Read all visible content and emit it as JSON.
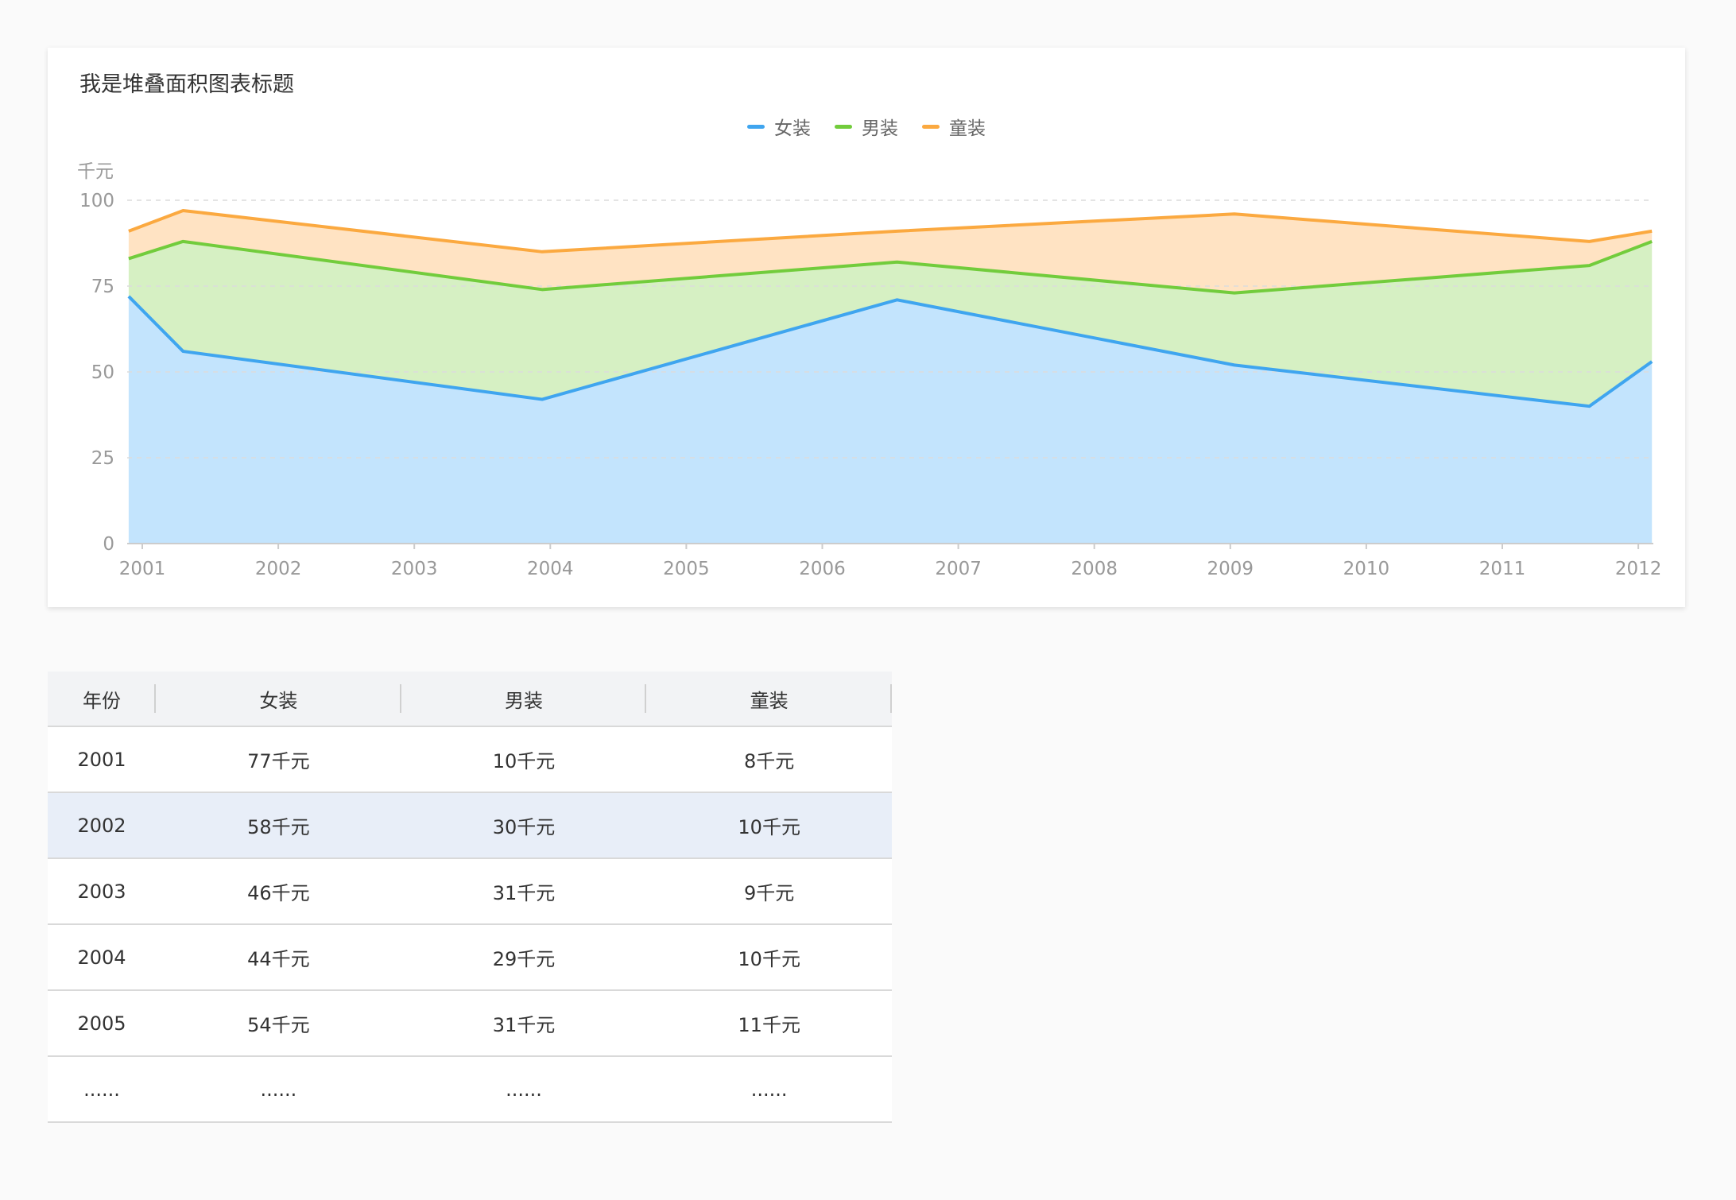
{
  "chart_data": {
    "type": "area",
    "stacked": true,
    "title": "我是堆叠面积图表标题",
    "ylabel": "千元",
    "xlabel": "",
    "ylim": [
      0,
      100
    ],
    "yticks": [
      0,
      25,
      50,
      75,
      100
    ],
    "categories": [
      "2001",
      "2002",
      "2003",
      "2004",
      "2005",
      "2006",
      "2007",
      "2008",
      "2009",
      "2010",
      "2011",
      "2012"
    ],
    "x": [
      2000.9,
      2001.3,
      2003.94,
      2006.55,
      2009.03,
      2011.64,
      2012.1
    ],
    "series": [
      {
        "name": "女装",
        "color": "#3fa5ef",
        "fill": "#c3e4fd",
        "values": [
          72,
          56,
          42,
          71,
          52,
          40,
          53
        ]
      },
      {
        "name": "男装",
        "color": "#72cc3c",
        "fill": "#d6f0c3",
        "values": [
          11,
          32,
          32,
          11,
          21,
          41,
          35
        ]
      },
      {
        "name": "童装",
        "color": "#fba940",
        "fill": "#ffe3c3",
        "values": [
          8,
          9,
          11,
          9,
          23,
          7,
          3
        ]
      }
    ],
    "grid": true,
    "legend_position": "top-center"
  },
  "table": {
    "headers": [
      "年份",
      "女装",
      "男装",
      "童装"
    ],
    "rows": [
      [
        "2001",
        "77千元",
        "10千元",
        "8千元"
      ],
      [
        "2002",
        "58千元",
        "30千元",
        "10千元"
      ],
      [
        "2003",
        "46千元",
        "31千元",
        "9千元"
      ],
      [
        "2004",
        "44千元",
        "29千元",
        "10千元"
      ],
      [
        "2005",
        "54千元",
        "31千元",
        "11千元"
      ],
      [
        "......",
        "......",
        "......",
        "......"
      ]
    ]
  }
}
